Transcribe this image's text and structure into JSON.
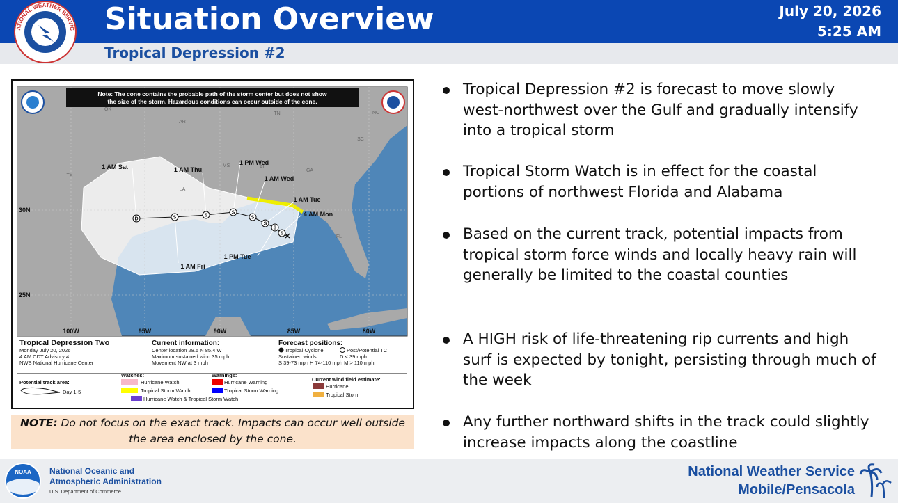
{
  "header": {
    "title": "Situation Overview",
    "subtitle": "Tropical Depression #2",
    "date": "July 20, 2026",
    "time": "5:25 AM",
    "logo_text": "NATIONAL WEATHER SERVICE"
  },
  "map": {
    "note": [
      "Note: The cone contains the probable path of the storm center but does not show",
      "the size of the storm. Hazardous conditions can occur outside of the cone."
    ],
    "states": [
      "OK",
      "AR",
      "TN",
      "MS",
      "AL",
      "GA",
      "SC",
      "NC",
      "TX",
      "LA",
      "FL"
    ],
    "track_labels": [
      "1 AM Sat",
      "1 AM Thu",
      "1 PM Wed",
      "1 AM Wed",
      "1 AM Tue",
      "4 AM Mon",
      "1 AM Fri",
      "1 PM Tue"
    ],
    "track_letters": [
      "S",
      "S",
      "S",
      "S",
      "S",
      "S",
      "S",
      "D"
    ],
    "latitudes": [
      "30N",
      "25N"
    ],
    "longitudes": [
      "100W",
      "95W",
      "90W",
      "85W",
      "80W"
    ],
    "legend": {
      "storm": "Tropical Depression Two",
      "date": "Monday July 20, 2026",
      "advisory": "4 AM CDT Advisory 4",
      "center": "NWS National Hurricane Center",
      "current_title": "Current information:",
      "current": [
        "Center location 28.5 N 85.4 W",
        "Maximum sustained wind 35 mph",
        "Movement NW at 3 mph"
      ],
      "forecast_title": "Forecast positions:",
      "tropical": "Tropical Cyclone",
      "post": "Post/Potential TC",
      "sustained": "Sustained winds:",
      "d": "D < 39 mph",
      "shm": "S 39-73 mph  H 74-110 mph  M > 110 mph",
      "track_area": "Potential track area:",
      "day": "Day 1-5",
      "watches": "Watches:",
      "hurricane_watch": "Hurricane Watch",
      "ts_watch": "Tropical Storm Watch",
      "warnings": "Warnings:",
      "hurricane_warning": "Hurricane Warning",
      "ts_warning": "Tropical Storm Warning",
      "combo": "Hurricane Watch & Tropical Storm Watch",
      "wind_title": "Current wind field estimate:",
      "wind_hurricane": "Hurricane",
      "wind_ts": "Tropical Storm"
    }
  },
  "note": {
    "label": "NOTE:",
    "text": "Do not focus on the exact track. Impacts can occur well outside the area enclosed by the cone."
  },
  "bullets": [
    "Tropical Depression #2 is forecast to move slowly west-northwest over the Gulf and gradually intensify into a tropical storm",
    "Tropical Storm Watch is in effect for the coastal portions of northwest Florida and Alabama",
    "Based on the current track, potential impacts from tropical storm force winds and locally heavy rain will generally be limited to the coastal counties",
    "A HIGH risk of life-threatening rip currents and high surf is expected by tonight, persisting through much of the week",
    "Any further northward shifts in the track could slightly increase impacts along the coastline"
  ],
  "footer": {
    "noaa": "NOAA",
    "agency": [
      "National Oceanic and",
      "Atmospheric Administration"
    ],
    "department": "U.S. Department of Commerce",
    "office": "National Weather Service",
    "location": "Mobile/Pensacola"
  }
}
